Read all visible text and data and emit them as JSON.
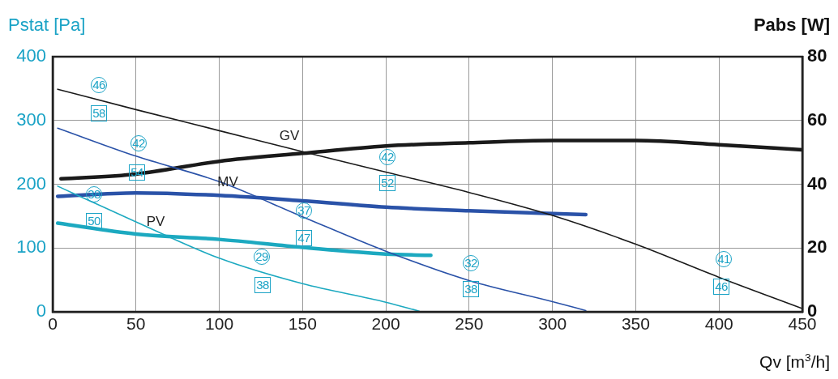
{
  "chart_data": {
    "type": "line",
    "xlabel": "Qv [m$^{3}$/h]",
    "ylabel": "Pstat [Pa]",
    "y2label": "Pabs [W]",
    "xlim": [
      0,
      450
    ],
    "xticks": [
      0,
      50,
      100,
      150,
      200,
      250,
      300,
      350,
      400,
      450
    ],
    "ylim": [
      0,
      400
    ],
    "yticks": [
      0,
      100,
      200,
      300,
      400
    ],
    "y2lim": [
      0,
      80
    ],
    "y2ticks": [
      0,
      20,
      40,
      60,
      80
    ],
    "grid": true,
    "legend": false,
    "series": [
      {
        "color": "#1a1a1a",
        "x": [
          3,
          50,
          100,
          150,
          200,
          250,
          300,
          350,
          400,
          450
        ],
        "values": [
          349,
          317,
          284,
          251,
          219,
          187,
          151,
          106,
          54,
          5
        ]
      },
      {
        "color": "#2a52a8",
        "x": [
          3,
          50,
          100,
          150,
          200,
          250,
          300,
          320
        ],
        "values": [
          288,
          244,
          204,
          149,
          95,
          49,
          16,
          2
        ]
      },
      {
        "color": "#1ca9c0",
        "x": [
          3,
          50,
          100,
          150,
          200,
          220
        ],
        "values": [
          197,
          141,
          84,
          44,
          15,
          1
        ]
      },
      {
        "color": "#1a1a1a",
        "axis": "y2",
        "x": [
          5,
          50,
          100,
          150,
          200,
          250,
          300,
          350,
          400,
          450
        ],
        "values": [
          41.7,
          43.2,
          47.2,
          49.7,
          52,
          53,
          53.7,
          53.7,
          52.4,
          50.8
        ]
      },
      {
        "color": "#2a52a8",
        "axis": "y2",
        "x": [
          3,
          50,
          100,
          150,
          200,
          250,
          320
        ],
        "values": [
          36.2,
          37.3,
          36.5,
          34.8,
          32.8,
          31.7,
          30.5
        ]
      },
      {
        "color": "#1ca9c0",
        "axis": "y2",
        "x": [
          3,
          50,
          100,
          150,
          200,
          227
        ],
        "values": [
          27.8,
          24.4,
          22.7,
          20.2,
          18.1,
          17.7
        ]
      }
    ],
    "annotations": [
      "GV",
      "MV",
      "PV",
      "46",
      "42",
      "38",
      "42",
      "37",
      "29",
      "32",
      "41",
      "58",
      "54",
      "50",
      "52",
      "47",
      "38",
      "38",
      "46"
    ]
  }
}
